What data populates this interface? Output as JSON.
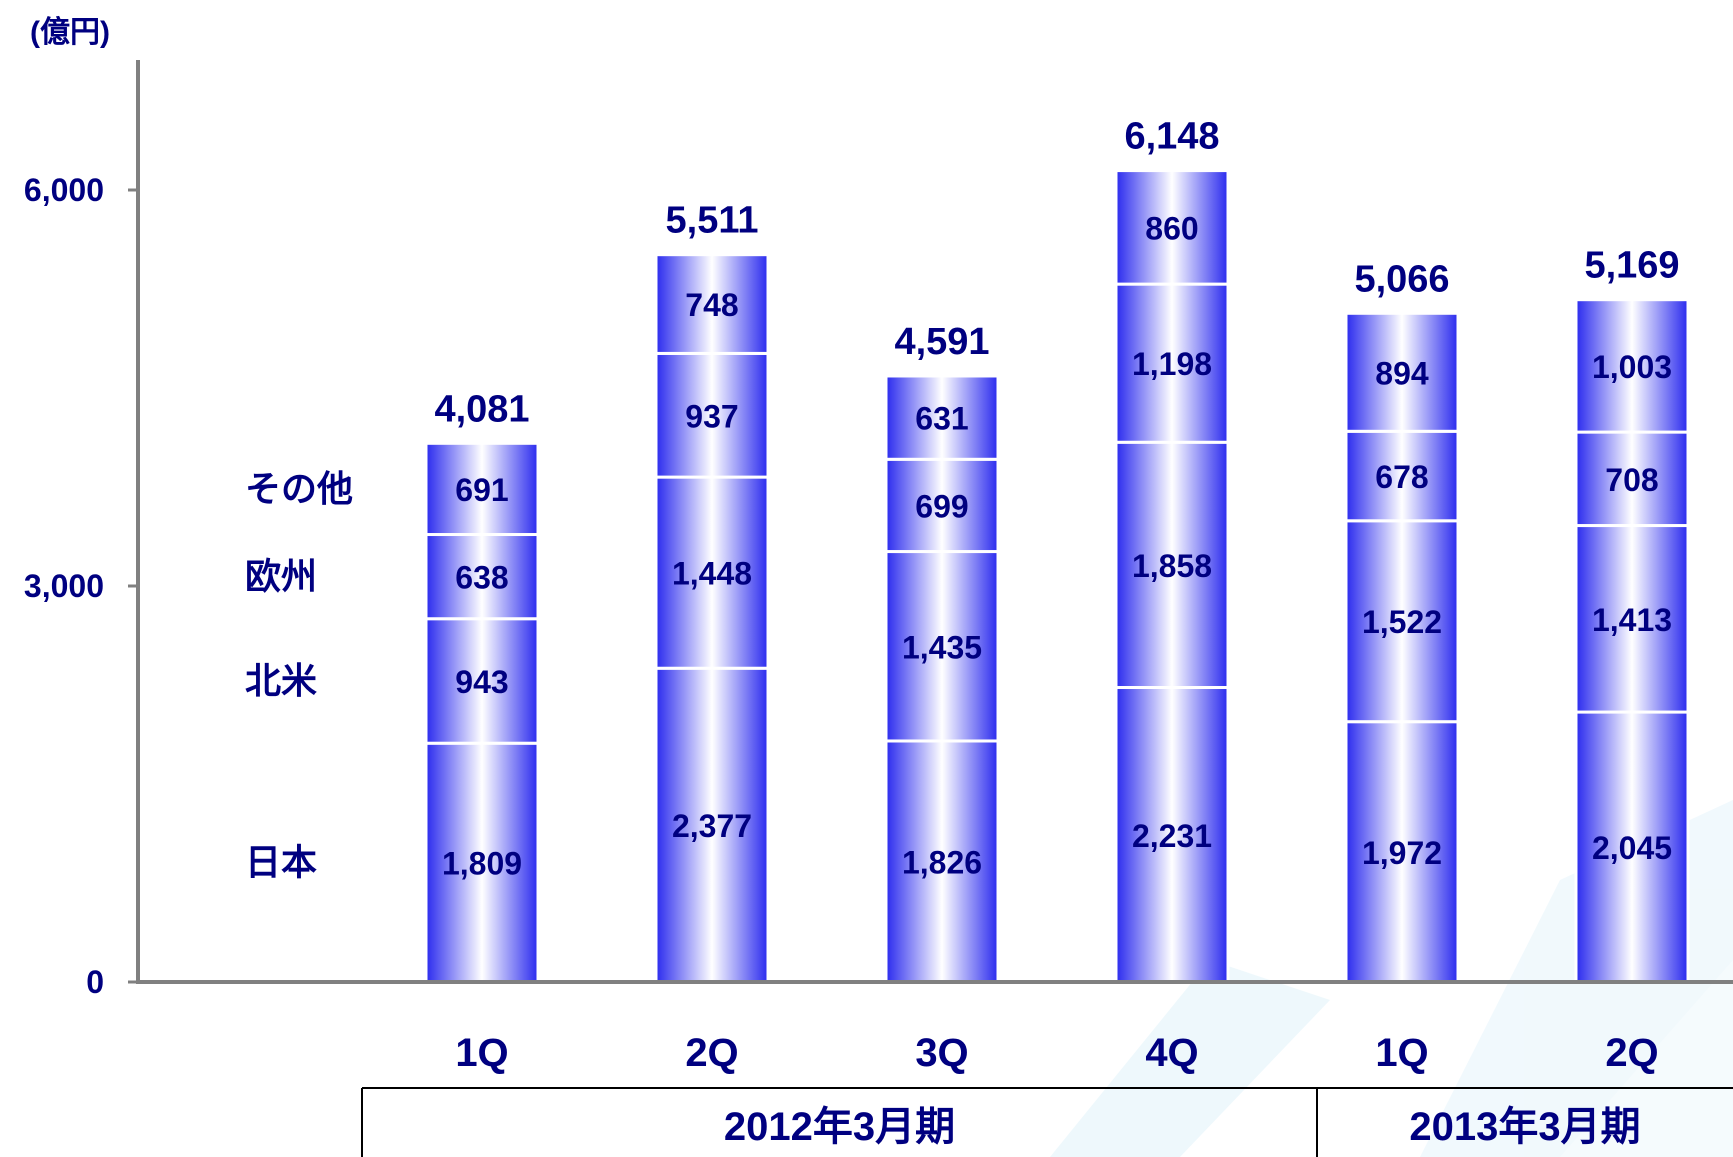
{
  "chart_data": {
    "type": "bar",
    "stacked": true,
    "unit_label": "(億円)",
    "y_ticks": [
      0,
      3000,
      6000
    ],
    "y_tick_labels": [
      "0",
      "3,000",
      "6,000"
    ],
    "ylim": [
      0,
      7000
    ],
    "categories": [
      "1Q",
      "2Q",
      "3Q",
      "4Q",
      "1Q",
      "2Q"
    ],
    "period_groups": [
      {
        "label": "2012年3月期",
        "count": 4
      },
      {
        "label": "2013年3月期",
        "count": 2
      }
    ],
    "series": [
      {
        "name": "日本",
        "values": [
          1809,
          2377,
          1826,
          2231,
          1972,
          2045
        ],
        "labels": [
          "1,809",
          "2,377",
          "1,826",
          "2,231",
          "1,972",
          "2,045"
        ]
      },
      {
        "name": "北米",
        "values": [
          943,
          1448,
          1435,
          1858,
          1522,
          1413
        ],
        "labels": [
          "943",
          "1,448",
          "1,435",
          "1,858",
          "1,522",
          "1,413"
        ]
      },
      {
        "name": "欧州",
        "values": [
          638,
          937,
          699,
          1198,
          678,
          708
        ],
        "labels": [
          "638",
          "937",
          "699",
          "1,198",
          "678",
          "708"
        ]
      },
      {
        "name": "その他",
        "values": [
          691,
          748,
          631,
          860,
          894,
          1003
        ],
        "labels": [
          "691",
          "748",
          "631",
          "860",
          "894",
          "1,003"
        ]
      }
    ],
    "totals": [
      4081,
      5511,
      4591,
      6148,
      5066,
      5169
    ],
    "total_labels": [
      "4,081",
      "5,511",
      "4,591",
      "6,148",
      "5,066",
      "5,169"
    ],
    "colors": {
      "bar_edge": "#2a2aee",
      "bar_center": "#ffffff",
      "text": "#000080",
      "axis": "#808080"
    }
  }
}
